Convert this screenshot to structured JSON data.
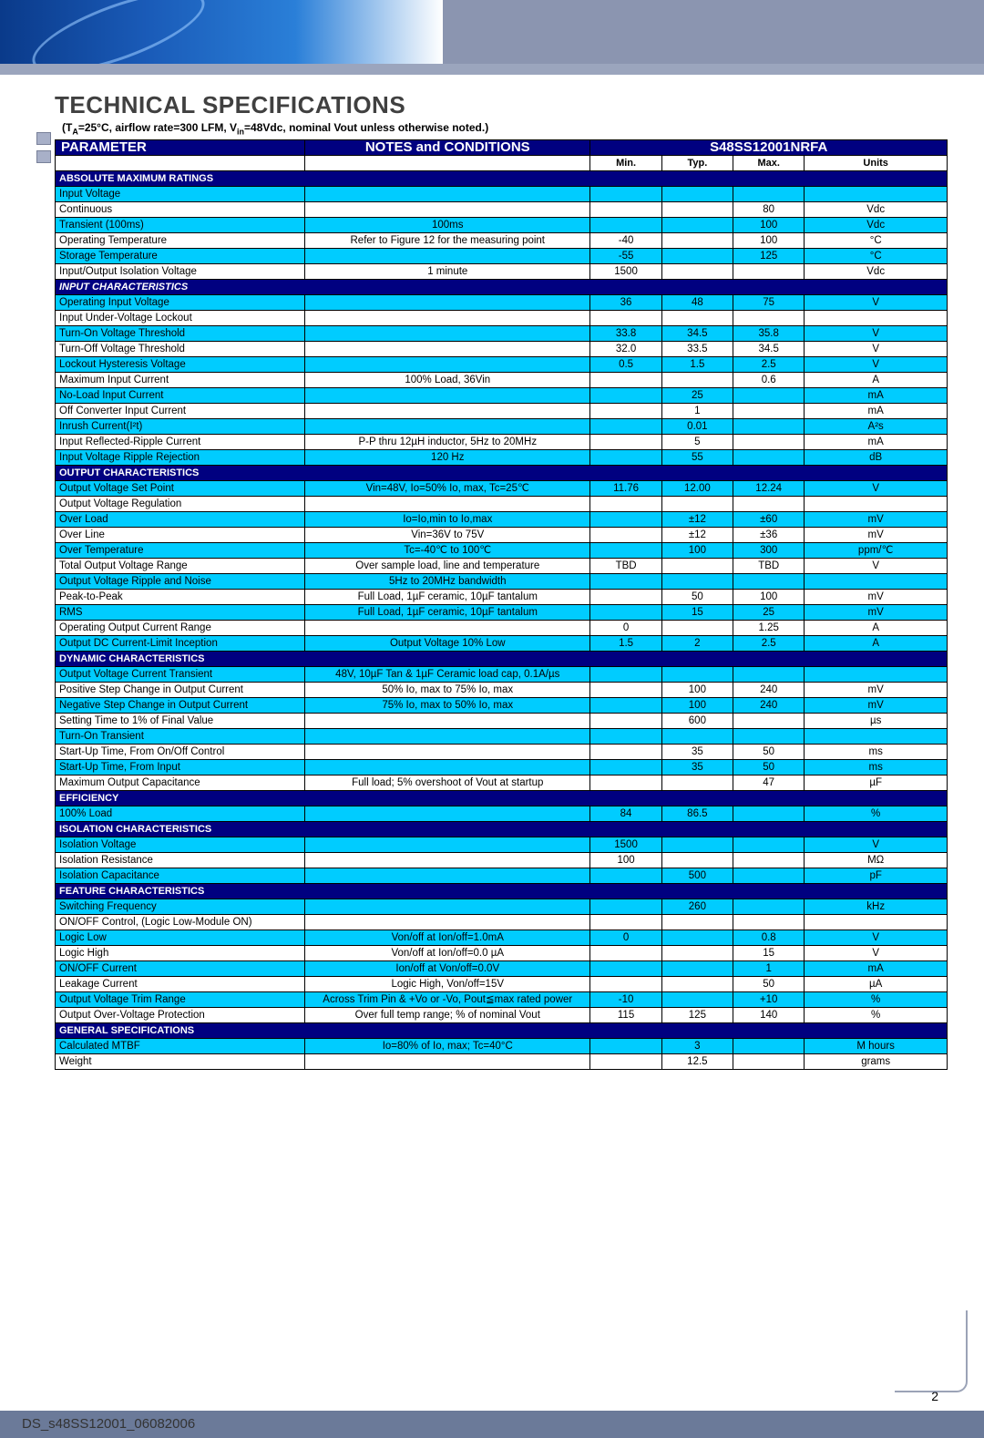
{
  "title": "TECHNICAL SPECIFICATIONS",
  "subtitle_html": "(T<sub>A</sub>=25°C, airflow rate=300 LFM, V<sub>in</sub>=48Vdc, nominal Vout unless otherwise noted.)",
  "header": {
    "param": "PARAMETER",
    "notes": "NOTES and CONDITIONS",
    "model": "S48SS12001NRFA"
  },
  "subheader": {
    "min": "Min.",
    "typ": "Typ.",
    "max": "Max.",
    "units": "Units"
  },
  "page_num": "2",
  "doc_id": "DS_s48SS12001_06082006",
  "colors": {
    "navy": "#000080",
    "cyan": "#00ccff",
    "white": "#ffffff",
    "border": "#000000"
  },
  "col_widths_pct": {
    "param": 28,
    "notes": 32,
    "min": 8,
    "typ": 8,
    "max": 8,
    "units": 16
  },
  "sections": [
    {
      "type": "section",
      "label": "ABSOLUTE MAXIMUM RATINGS",
      "italic": false
    },
    {
      "type": "row",
      "bg": "cyan",
      "indent": 0,
      "param": "Input Voltage",
      "notes": "",
      "min": "",
      "typ": "",
      "max": "",
      "units": ""
    },
    {
      "type": "row",
      "bg": "white",
      "indent": 1,
      "param": "Continuous",
      "notes": "",
      "min": "",
      "typ": "",
      "max": "80",
      "units": "Vdc"
    },
    {
      "type": "row",
      "bg": "cyan",
      "indent": 1,
      "param": "Transient (100ms)",
      "notes": "100ms",
      "min": "",
      "typ": "",
      "max": "100",
      "units": "Vdc"
    },
    {
      "type": "row",
      "bg": "white",
      "indent": 0,
      "param": "Operating Temperature",
      "notes": "Refer to Figure 12 for the measuring point",
      "min": "-40",
      "typ": "",
      "max": "100",
      "units": "°C"
    },
    {
      "type": "row",
      "bg": "cyan",
      "indent": 0,
      "param": "Storage Temperature",
      "notes": "",
      "min": "-55",
      "typ": "",
      "max": "125",
      "units": "°C"
    },
    {
      "type": "row",
      "bg": "white",
      "indent": 0,
      "param": "Input/Output Isolation Voltage",
      "notes": "1 minute",
      "min": "1500",
      "typ": "",
      "max": "",
      "units": "Vdc"
    },
    {
      "type": "section",
      "label": "INPUT CHARACTERISTICS",
      "italic": true
    },
    {
      "type": "row",
      "bg": "cyan",
      "indent": 0,
      "param": "Operating Input Voltage",
      "notes": "",
      "min": "36",
      "typ": "48",
      "max": "75",
      "units": "V"
    },
    {
      "type": "row",
      "bg": "white",
      "indent": 0,
      "param": "Input Under-Voltage Lockout",
      "notes": "",
      "min": "",
      "typ": "",
      "max": "",
      "units": ""
    },
    {
      "type": "row",
      "bg": "cyan",
      "indent": 1,
      "param": "Turn-On Voltage Threshold",
      "notes": "",
      "min": "33.8",
      "typ": "34.5",
      "max": "35.8",
      "units": "V"
    },
    {
      "type": "row",
      "bg": "white",
      "indent": 1,
      "param": "Turn-Off Voltage Threshold",
      "notes": "",
      "min": "32.0",
      "typ": "33.5",
      "max": "34.5",
      "units": "V"
    },
    {
      "type": "row",
      "bg": "cyan",
      "indent": 1,
      "param": "Lockout Hysteresis Voltage",
      "notes": "",
      "min": "0.5",
      "typ": "1.5",
      "max": "2.5",
      "units": "V"
    },
    {
      "type": "row",
      "bg": "white",
      "indent": 0,
      "param": "Maximum Input Current",
      "notes": "100% Load, 36Vin",
      "min": "",
      "typ": "",
      "max": "0.6",
      "units": "A"
    },
    {
      "type": "row",
      "bg": "cyan",
      "indent": 0,
      "param": "No-Load Input Current",
      "notes": "",
      "min": "",
      "typ": "25",
      "max": "",
      "units": "mA"
    },
    {
      "type": "row",
      "bg": "white",
      "indent": 0,
      "param": "Off Converter Input Current",
      "notes": "",
      "min": "",
      "typ": "1",
      "max": "",
      "units": "mA"
    },
    {
      "type": "row",
      "bg": "cyan",
      "indent": 0,
      "param": "Inrush Current(I²t)",
      "notes": "",
      "min": "",
      "typ": "0.01",
      "max": "",
      "units": "A²s"
    },
    {
      "type": "row",
      "bg": "white",
      "indent": 0,
      "param": "Input Reflected-Ripple Current",
      "notes": "P-P thru 12µH inductor, 5Hz to 20MHz",
      "min": "",
      "typ": "5",
      "max": "",
      "units": "mA"
    },
    {
      "type": "row",
      "bg": "cyan",
      "indent": 0,
      "param": "Input Voltage Ripple Rejection",
      "notes": "120 Hz",
      "min": "",
      "typ": "55",
      "max": "",
      "units": "dB"
    },
    {
      "type": "section",
      "label": "OUTPUT CHARACTERISTICS",
      "italic": false
    },
    {
      "type": "row",
      "bg": "cyan",
      "indent": 0,
      "param": "Output Voltage Set Point",
      "notes": "Vin=48V, Io=50% Io, max, Tc=25℃",
      "min": "11.76",
      "typ": "12.00",
      "max": "12.24",
      "units": "V"
    },
    {
      "type": "row",
      "bg": "white",
      "indent": 0,
      "param": "Output Voltage Regulation",
      "notes": "",
      "min": "",
      "typ": "",
      "max": "",
      "units": ""
    },
    {
      "type": "row",
      "bg": "cyan",
      "indent": 1,
      "param": "Over Load",
      "notes": "Io=Io,min to Io,max",
      "min": "",
      "typ": "±12",
      "max": "±60",
      "units": "mV"
    },
    {
      "type": "row",
      "bg": "white",
      "indent": 1,
      "param": "Over Line",
      "notes": "Vin=36V to 75V",
      "min": "",
      "typ": "±12",
      "max": "±36",
      "units": "mV"
    },
    {
      "type": "row",
      "bg": "cyan",
      "indent": 1,
      "param": "Over Temperature",
      "notes": "Tc=-40℃ to 100℃",
      "min": "",
      "typ": "100",
      "max": "300",
      "units": "ppm/℃"
    },
    {
      "type": "row",
      "bg": "white",
      "indent": 0,
      "param": "Total Output Voltage Range",
      "notes": "Over sample load, line and temperature",
      "min": "TBD",
      "typ": "",
      "max": "TBD",
      "units": "V"
    },
    {
      "type": "row",
      "bg": "cyan",
      "indent": 0,
      "param": "Output Voltage Ripple and Noise",
      "notes": "5Hz to 20MHz bandwidth",
      "min": "",
      "typ": "",
      "max": "",
      "units": ""
    },
    {
      "type": "row",
      "bg": "white",
      "indent": 1,
      "param": "Peak-to-Peak",
      "notes": "Full Load, 1µF ceramic, 10µF tantalum",
      "min": "",
      "typ": "50",
      "max": "100",
      "units": "mV"
    },
    {
      "type": "row",
      "bg": "cyan",
      "indent": 1,
      "param": "RMS",
      "notes": "Full Load, 1µF ceramic, 10µF tantalum",
      "min": "",
      "typ": "15",
      "max": "25",
      "units": "mV"
    },
    {
      "type": "row",
      "bg": "white",
      "indent": 0,
      "param": "Operating Output Current Range",
      "notes": "",
      "min": "0",
      "typ": "",
      "max": "1.25",
      "units": "A"
    },
    {
      "type": "row",
      "bg": "cyan",
      "indent": 0,
      "param": "Output DC Current-Limit Inception",
      "notes": "Output Voltage 10% Low",
      "min": "1.5",
      "typ": "2",
      "max": "2.5",
      "units": "A"
    },
    {
      "type": "section",
      "label": "DYNAMIC CHARACTERISTICS",
      "italic": false
    },
    {
      "type": "row",
      "bg": "cyan",
      "indent": 0,
      "param": "Output Voltage Current Transient",
      "notes": "48V, 10µF Tan & 1µF Ceramic load cap, 0.1A/µs",
      "min": "",
      "typ": "",
      "max": "",
      "units": ""
    },
    {
      "type": "row",
      "bg": "white",
      "indent": 1,
      "param": "Positive Step Change in Output Current",
      "notes": "50% Io, max to 75% Io, max",
      "min": "",
      "typ": "100",
      "max": "240",
      "units": "mV"
    },
    {
      "type": "row",
      "bg": "cyan",
      "indent": 1,
      "param": "Negative Step Change in Output Current",
      "notes": "75% Io, max to 50% Io, max",
      "min": "",
      "typ": "100",
      "max": "240",
      "units": "mV"
    },
    {
      "type": "row",
      "bg": "white",
      "indent": 1,
      "param": "Setting Time to 1% of Final Value",
      "notes": "",
      "min": "",
      "typ": "600",
      "max": "",
      "units": "µs"
    },
    {
      "type": "row",
      "bg": "cyan",
      "indent": 0,
      "param": "Turn-On Transient",
      "notes": "",
      "min": "",
      "typ": "",
      "max": "",
      "units": ""
    },
    {
      "type": "row",
      "bg": "white",
      "indent": 1,
      "param": "Start-Up Time, From On/Off Control",
      "notes": "",
      "min": "",
      "typ": "35",
      "max": "50",
      "units": "ms"
    },
    {
      "type": "row",
      "bg": "cyan",
      "indent": 1,
      "param": "Start-Up Time, From Input",
      "notes": "",
      "min": "",
      "typ": "35",
      "max": "50",
      "units": "ms"
    },
    {
      "type": "row",
      "bg": "white",
      "indent": 1,
      "param": "Maximum Output Capacitance",
      "notes": "Full load; 5% overshoot of Vout at startup",
      "min": "",
      "typ": "",
      "max": "47",
      "units": "µF"
    },
    {
      "type": "section",
      "label": "EFFICIENCY",
      "italic": false
    },
    {
      "type": "row",
      "bg": "cyan",
      "indent": 0,
      "param": "100% Load",
      "notes": "",
      "min": "84",
      "typ": "86.5",
      "max": "",
      "units": "%"
    },
    {
      "type": "section",
      "label": "ISOLATION CHARACTERISTICS",
      "italic": false
    },
    {
      "type": "row",
      "bg": "cyan",
      "indent": 0,
      "param": "Isolation Voltage",
      "notes": "",
      "min": "1500",
      "typ": "",
      "max": "",
      "units": "V"
    },
    {
      "type": "row",
      "bg": "white",
      "indent": 0,
      "param": "Isolation Resistance",
      "notes": "",
      "min": "100",
      "typ": "",
      "max": "",
      "units": "MΩ"
    },
    {
      "type": "row",
      "bg": "cyan",
      "indent": 0,
      "param": "Isolation Capacitance",
      "notes": "",
      "min": "",
      "typ": "500",
      "max": "",
      "units": "pF"
    },
    {
      "type": "section",
      "label": "FEATURE CHARACTERISTICS",
      "italic": false
    },
    {
      "type": "row",
      "bg": "cyan",
      "indent": 0,
      "param": "Switching Frequency",
      "notes": "",
      "min": "",
      "typ": "260",
      "max": "",
      "units": "kHz"
    },
    {
      "type": "row",
      "bg": "white",
      "indent": 0,
      "param": "ON/OFF Control, (Logic Low-Module ON)",
      "notes": "",
      "min": "",
      "typ": "",
      "max": "",
      "units": ""
    },
    {
      "type": "row",
      "bg": "cyan",
      "indent": 1,
      "param": "Logic Low",
      "notes": "Von/off at Ion/off=1.0mA",
      "min": "0",
      "typ": "",
      "max": "0.8",
      "units": "V"
    },
    {
      "type": "row",
      "bg": "white",
      "indent": 1,
      "param": "Logic High",
      "notes": "Von/off at Ion/off=0.0 µA",
      "min": "",
      "typ": "",
      "max": "15",
      "units": "V"
    },
    {
      "type": "row",
      "bg": "cyan",
      "indent": 1,
      "param": "ON/OFF Current",
      "notes": "Ion/off at Von/off=0.0V",
      "min": "",
      "typ": "",
      "max": "1",
      "units": "mA"
    },
    {
      "type": "row",
      "bg": "white",
      "indent": 0,
      "param": "Leakage Current",
      "notes": "Logic High, Von/off=15V",
      "min": "",
      "typ": "",
      "max": "50",
      "units": "µA"
    },
    {
      "type": "row",
      "bg": "cyan",
      "indent": 0,
      "param": "Output Voltage Trim Range",
      "notes": "Across Trim Pin & +Vo or -Vo, Pout≦max rated power",
      "min": "-10",
      "typ": "",
      "max": "+10",
      "units": "%"
    },
    {
      "type": "row",
      "bg": "white",
      "indent": 0,
      "param": "Output Over-Voltage Protection",
      "notes": "Over full temp range; % of nominal Vout",
      "min": "115",
      "typ": "125",
      "max": "140",
      "units": "%"
    },
    {
      "type": "section",
      "label": "GENERAL SPECIFICATIONS",
      "italic": false
    },
    {
      "type": "row",
      "bg": "cyan",
      "indent": 0,
      "param": "Calculated MTBF",
      "notes": "Io=80% of Io, max; Tc=40°C",
      "min": "",
      "typ": "3",
      "max": "",
      "units": "M hours"
    },
    {
      "type": "row",
      "bg": "white",
      "indent": 0,
      "param": "Weight",
      "notes": "",
      "min": "",
      "typ": "12.5",
      "max": "",
      "units": "grams"
    }
  ]
}
